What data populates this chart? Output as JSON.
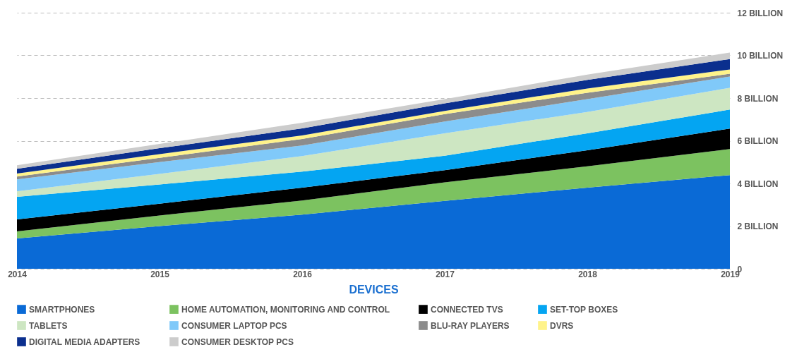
{
  "chart_data": {
    "type": "area",
    "stacked": true,
    "xlabel": "DEVICES",
    "x": [
      2014,
      2015,
      2016,
      2017,
      2018,
      2019
    ],
    "xlim": [
      2014,
      2019
    ],
    "xticks": [
      2014,
      2015,
      2016,
      2017,
      2018,
      2019
    ],
    "ylim": [
      0,
      12
    ],
    "yticks": [
      0,
      {
        "value": 2,
        "label": "2 BILLION"
      },
      {
        "value": 4,
        "label": "4 BILLION"
      },
      {
        "value": 6,
        "label": "6 BILLION"
      },
      {
        "value": 8,
        "label": "8 BILLION"
      },
      {
        "value": 10,
        "label": "10 BILLION"
      },
      {
        "value": 12,
        "label": "12 BILLION"
      }
    ],
    "grid": "y",
    "legend": "bottom",
    "series": [
      {
        "name": "SMARTPHONES",
        "color": "#0a6ad6",
        "values": [
          1.42,
          2.0,
          2.54,
          3.18,
          3.8,
          4.39
        ]
      },
      {
        "name": "HOME AUTOMATION, MONITORING AND CONTROL",
        "color": "#7cc260",
        "values": [
          0.33,
          0.5,
          0.66,
          0.87,
          1.0,
          1.22
        ]
      },
      {
        "name": "CONNECTED TVS",
        "color": "#000000",
        "values": [
          0.56,
          0.55,
          0.6,
          0.57,
          0.75,
          0.96
        ]
      },
      {
        "name": "SET-TOP BOXES",
        "color": "#04a5f2",
        "values": [
          1.06,
          0.9,
          0.75,
          0.68,
          0.8,
          0.89
        ]
      },
      {
        "name": "TABLETS",
        "color": "#cde6c2",
        "values": [
          0.26,
          0.5,
          0.73,
          1.05,
          1.0,
          1.02
        ]
      },
      {
        "name": "CONSUMER LAPTOP PCS",
        "color": "#80c9f9",
        "values": [
          0.56,
          0.55,
          0.5,
          0.55,
          0.6,
          0.53
        ]
      },
      {
        "name": "BLU-RAY PLAYERS",
        "color": "#8c8c8c",
        "values": [
          0.13,
          0.2,
          0.3,
          0.35,
          0.3,
          0.13
        ]
      },
      {
        "name": "DVRS",
        "color": "#fff38a",
        "values": [
          0.14,
          0.17,
          0.17,
          0.15,
          0.2,
          0.2
        ]
      },
      {
        "name": "DIGITAL MEDIA ADAPTERS",
        "color": "#0b2f8e",
        "values": [
          0.23,
          0.28,
          0.33,
          0.35,
          0.4,
          0.49
        ]
      },
      {
        "name": "CONSUMER DESKTOP PCS",
        "color": "#cccccc",
        "values": [
          0.16,
          0.2,
          0.26,
          0.2,
          0.25,
          0.3
        ]
      }
    ]
  }
}
